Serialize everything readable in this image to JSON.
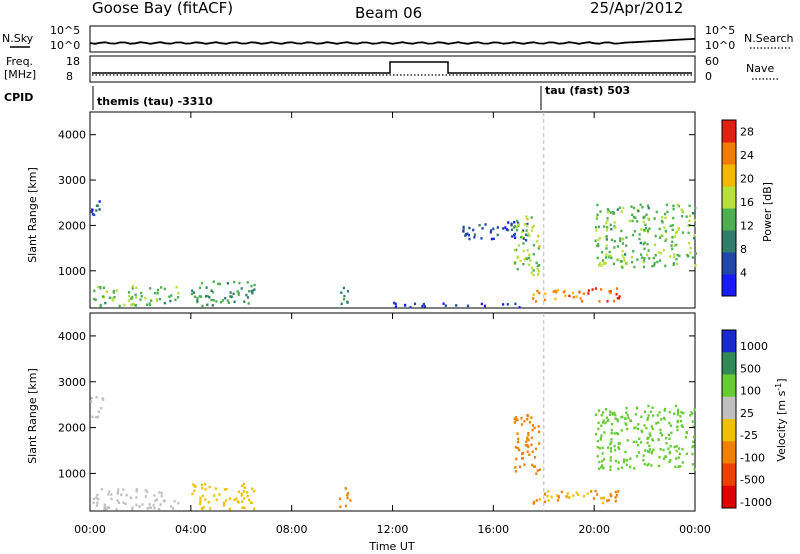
{
  "header": {
    "station": "Goose Bay (fitACF)",
    "beam": "Beam 06",
    "date": "25/Apr/2012"
  },
  "top_panels": {
    "noise_left_label": "N.Sky",
    "noise_left_ticks": [
      "10^5",
      "10^0"
    ],
    "noise_right_ticks": [
      "10^5",
      "10^0"
    ],
    "noise_right_label": "N.Search",
    "freq_left_label": "Freq.",
    "freq_left_units": "[MHz]",
    "freq_left_ticks": [
      "18",
      "8"
    ],
    "freq_right_ticks": [
      "60",
      "0"
    ],
    "freq_right_label": "Nave",
    "cpid_label": "CPID",
    "cpid_1": "themis (tau) -3310",
    "cpid_2": "tau (fast) 503"
  },
  "chart_data": [
    {
      "type": "heatmap",
      "title": "",
      "ylabel": "Slant Range [km]",
      "xlabel": "",
      "ylim": [
        180,
        4500
      ],
      "xlim": [
        0,
        24
      ],
      "yticks": [
        "1000",
        "2000",
        "3000",
        "4000"
      ],
      "colorbar": {
        "label": "Power [dB]",
        "ticks": [
          "4",
          "8",
          "12",
          "16",
          "20",
          "24",
          "28"
        ],
        "range": [
          0,
          30
        ],
        "colors": [
          "#1a1aff",
          "#1f46a8",
          "#2f7d6a",
          "#4caf50",
          "#b7e03a",
          "#f5b800",
          "#f07d00",
          "#e02010"
        ]
      },
      "echo_regions": [
        {
          "t0": 0.1,
          "t1": 3.5,
          "r0": 240,
          "r1": 700,
          "level": 14
        },
        {
          "t0": 4.0,
          "t1": 6.5,
          "r0": 250,
          "r1": 800,
          "level": 12
        },
        {
          "t0": 0.0,
          "t1": 0.5,
          "r0": 2200,
          "r1": 2700,
          "level": 6
        },
        {
          "t0": 9.8,
          "t1": 10.3,
          "r0": 300,
          "r1": 700,
          "level": 10
        },
        {
          "t0": 12.0,
          "t1": 17.0,
          "r0": 220,
          "r1": 320,
          "level": 4
        },
        {
          "t0": 14.5,
          "t1": 17.4,
          "r0": 1700,
          "r1": 2100,
          "level": 6
        },
        {
          "t0": 16.8,
          "t1": 17.8,
          "r0": 900,
          "r1": 2300,
          "level": 16
        },
        {
          "t0": 17.5,
          "t1": 19.5,
          "r0": 350,
          "r1": 600,
          "level": 24
        },
        {
          "t0": 19.3,
          "t1": 21.0,
          "r0": 350,
          "r1": 650,
          "level": 26
        },
        {
          "t0": 20.0,
          "t1": 24.0,
          "r0": 1100,
          "r1": 2500,
          "level": 14
        }
      ]
    },
    {
      "type": "heatmap",
      "title": "",
      "ylabel": "Slant Range [km]",
      "xlabel": "Time UT",
      "ylim": [
        180,
        4500
      ],
      "xlim": [
        0,
        24
      ],
      "xticks": [
        "00:00",
        "04:00",
        "08:00",
        "12:00",
        "16:00",
        "20:00",
        "00:00"
      ],
      "yticks": [
        "1000",
        "2000",
        "3000",
        "4000"
      ],
      "colorbar": {
        "label": "Velocity [m s^-1]",
        "ticks": [
          "1000",
          "500",
          "100",
          "25",
          "-25",
          "-100",
          "-500",
          "-1000"
        ],
        "colors": [
          "#1a2ad0",
          "#2e8b57",
          "#66cc33",
          "#c0c0c0",
          "#f0c000",
          "#f08000",
          "#f04000",
          "#e00000"
        ]
      },
      "echo_regions": [
        {
          "t0": 0.1,
          "t1": 3.5,
          "r0": 240,
          "r1": 700,
          "level": 0
        },
        {
          "t0": 4.0,
          "t1": 6.5,
          "r0": 250,
          "r1": 800,
          "level": -50
        },
        {
          "t0": 0.0,
          "t1": 0.5,
          "r0": 2200,
          "r1": 2700,
          "level": 0
        },
        {
          "t0": 9.8,
          "t1": 10.3,
          "r0": 300,
          "r1": 700,
          "level": -150
        },
        {
          "t0": 16.8,
          "t1": 17.8,
          "r0": 900,
          "r1": 2300,
          "level": -200
        },
        {
          "t0": 17.5,
          "t1": 21.0,
          "r0": 350,
          "r1": 650,
          "level": -100
        },
        {
          "t0": 20.0,
          "t1": 24.0,
          "r0": 1100,
          "r1": 2500,
          "level": 50
        }
      ]
    }
  ],
  "marker_time": 18.0
}
